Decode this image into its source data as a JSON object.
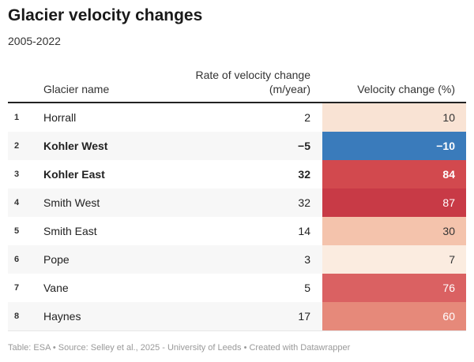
{
  "title": "Glacier velocity changes",
  "subtitle": "2005-2022",
  "header": {
    "name": "Glacier name",
    "rate": [
      "Rate of velocity change",
      "(m/year)"
    ],
    "change": "Velocity change (%)"
  },
  "table": {
    "rows": [
      [
        "1",
        "Horrall",
        "2",
        "10"
      ],
      [
        "2",
        "Kohler West",
        "−5",
        "−10"
      ],
      [
        "3",
        "Kohler East",
        "32",
        "84"
      ],
      [
        "4",
        "Smith West",
        "32",
        "87"
      ],
      [
        "5",
        "Smith East",
        "14",
        "30"
      ],
      [
        "6",
        "Pope",
        "3",
        "7"
      ],
      [
        "7",
        "Vane",
        "5",
        "76"
      ],
      [
        "8",
        "Haynes",
        "17",
        "60"
      ]
    ],
    "bold": [
      false,
      true,
      true,
      false,
      false,
      false,
      false,
      false
    ],
    "cell_colors": [
      "#f9e3d4",
      "#3a7bbb",
      "#d2494e",
      "#c83a46",
      "#f4c3ac",
      "#fbece0",
      "#da6162",
      "#e6897a"
    ],
    "cell_text_colors": [
      "#333333",
      "#ffffff",
      "#ffffff",
      "#ffffff",
      "#333333",
      "#333333",
      "#ffffff",
      "#ffffff"
    ]
  },
  "footer": "Table: ESA • Source: Selley et al., 2025 - University of Leeds • Created with Datawrapper"
}
